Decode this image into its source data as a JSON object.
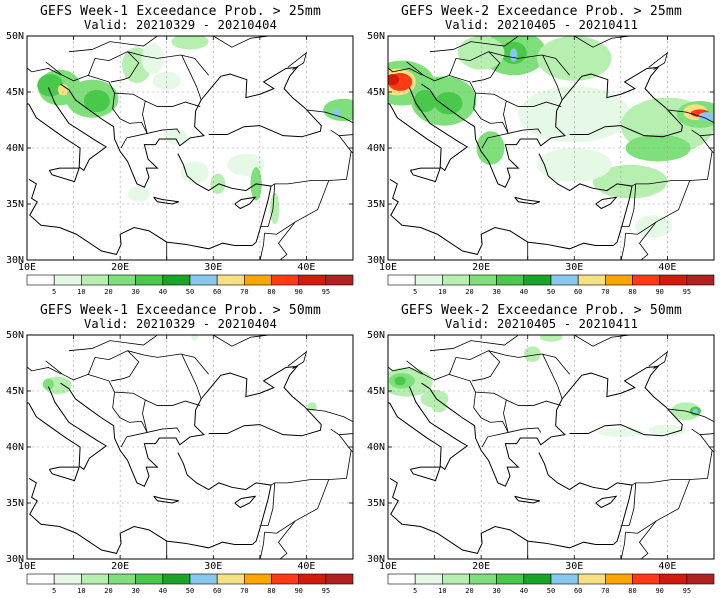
{
  "panels": [
    {
      "title": "GEFS Week-1 Exceedance Prob. > 25mm",
      "valid": "Valid: 20210329 - 20210404"
    },
    {
      "title": "GEFS Week-2 Exceedance Prob. > 25mm",
      "valid": "Valid: 20210405 - 20210411"
    },
    {
      "title": "GEFS Week-1 Exceedance Prob. > 50mm",
      "valid": "Valid: 20210329 - 20210404"
    },
    {
      "title": "GEFS Week-2 Exceedance Prob. > 50mm",
      "valid": "Valid: 20210405 - 20210411"
    }
  ],
  "lat_labels": [
    "50N",
    "45N",
    "40N",
    "35N",
    "30N"
  ],
  "lon_labels": [
    "10E",
    "20E",
    "30E",
    "40E"
  ],
  "colorbar": {
    "colors": [
      "#ffffff",
      "#e6f9e6",
      "#b6efb0",
      "#7fdf7a",
      "#49c94a",
      "#1aa52a",
      "#89c8ee",
      "#f5e082",
      "#ffa500",
      "#ff3a14",
      "#d11c0c",
      "#b02222"
    ],
    "labels": [
      "5",
      "10",
      "20",
      "30",
      "40",
      "50",
      "60",
      "70",
      "80",
      "90",
      "95"
    ]
  }
}
